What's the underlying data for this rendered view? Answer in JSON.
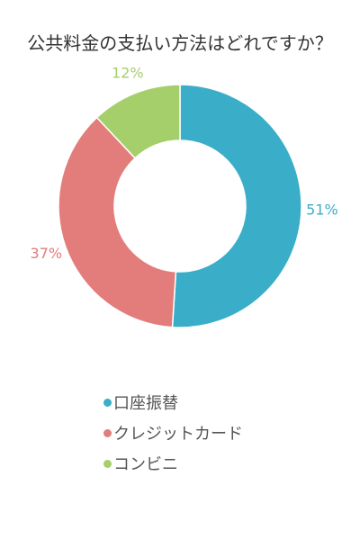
{
  "chart_data": {
    "type": "pie",
    "title": "公共料金の支払い方法はどれですか？",
    "categories": [
      "口座振替",
      "クレジットカード",
      "コンビニ"
    ],
    "values": [
      51,
      37,
      12
    ],
    "labels": [
      "51%",
      "37%",
      "12%"
    ],
    "colors": [
      "#3aaec9",
      "#e27d7b",
      "#a5cf6b"
    ],
    "legend_position": "bottom",
    "donut": true
  }
}
